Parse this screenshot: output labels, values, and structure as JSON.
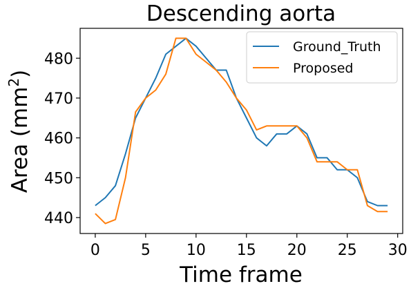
{
  "chart_data": {
    "type": "line",
    "title": "Descending aorta",
    "xlabel": "Time frame",
    "ylabel": "Area (mm²)",
    "ylabel_base": "Area (mm",
    "ylabel_sup": "2",
    "ylabel_tail": ")",
    "xlim": [
      -1.5,
      30.5
    ],
    "ylim": [
      436,
      487.5
    ],
    "xticks": [
      0,
      5,
      10,
      15,
      20,
      25,
      30
    ],
    "yticks": [
      440,
      450,
      460,
      470,
      480
    ],
    "grid": false,
    "legend_position": "top-right",
    "x": [
      0,
      1,
      2,
      3,
      4,
      5,
      6,
      7,
      8,
      9,
      10,
      11,
      12,
      13,
      14,
      15,
      16,
      17,
      18,
      19,
      20,
      21,
      22,
      23,
      24,
      25,
      26,
      27,
      28,
      29
    ],
    "series": [
      {
        "name": "Ground_Truth",
        "color": "#1f77b4",
        "values": [
          443,
          445,
          448,
          456,
          465,
          470,
          475,
          481,
          483,
          485,
          483,
          480,
          477,
          477,
          470,
          465,
          460,
          458,
          461,
          461,
          463,
          461,
          455,
          455,
          452,
          452,
          450,
          444,
          443,
          443
        ]
      },
      {
        "name": "Proposed",
        "color": "#ff7f0e",
        "values": [
          441,
          438.5,
          439.5,
          450,
          466.5,
          470,
          472,
          476,
          485,
          485,
          481,
          479,
          477,
          474,
          470,
          467,
          462,
          463,
          463,
          463,
          463,
          460,
          454,
          454,
          454,
          452,
          452,
          443,
          441.5,
          441.5
        ]
      }
    ]
  }
}
